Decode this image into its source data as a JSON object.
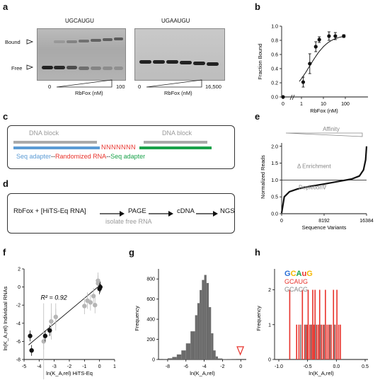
{
  "panels": {
    "a": "a",
    "b": "b",
    "c": "c",
    "d": "d",
    "e": "e",
    "f": "f",
    "g": "g",
    "h": "h"
  },
  "panel_a": {
    "seq1": "UGCAUGU",
    "seq2": "UGAAUGU",
    "bound_label": "Bound",
    "free_label": "Free",
    "x1_min": "0",
    "x1_max": "100",
    "x2_min": "0",
    "x2_max": "16,500",
    "xlabel1": "RbFox (nM)",
    "xlabel2": "RbFox (nM)"
  },
  "panel_c": {
    "dna_block_left": "DNA block",
    "dna_block_right": "DNA block",
    "randomized_seq": "NNNNNNN",
    "adapter_left": "Seq adapter",
    "dash1": "--",
    "middle": "Randomized RNA",
    "dash2": "--",
    "adapter_right": "Seq adapter"
  },
  "panel_d": {
    "step1": "RbFox + [HiTS-Eq RNA]",
    "step2": "PAGE",
    "step3": "cDNA",
    "step4": "NGS",
    "note": "isolate free RNA"
  },
  "chart_data": [
    {
      "panel": "b",
      "type": "scatter",
      "xlabel": "RbFox (nM)",
      "ylabel": "Fraction Bound",
      "xticks": [
        "0",
        "1",
        "10",
        "100"
      ],
      "yticks": [
        "0.0",
        "0.2",
        "0.4",
        "0.6",
        "0.8",
        "1.0"
      ],
      "xscale": "log",
      "ylim": [
        0,
        1.0
      ],
      "points": [
        {
          "x": 0,
          "y": 0.0,
          "err": 0.0
        },
        {
          "x": 1.2,
          "y": 0.21,
          "err": 0.07
        },
        {
          "x": 2.4,
          "y": 0.47,
          "err": 0.14
        },
        {
          "x": 4.5,
          "y": 0.71,
          "err": 0.07
        },
        {
          "x": 6.5,
          "y": 0.81,
          "err": 0.04
        },
        {
          "x": 18,
          "y": 0.86,
          "err": 0.06
        },
        {
          "x": 35,
          "y": 0.86,
          "err": 0.05
        },
        {
          "x": 85,
          "y": 0.86,
          "err": 0.02
        }
      ],
      "fit": "binding curve"
    },
    {
      "panel": "e",
      "type": "line",
      "title": "Affinity",
      "xlabel": "Sequence Variants",
      "ylabel": "Normalized Reads",
      "xticks": [
        "0",
        "8192",
        "16384"
      ],
      "yticks": [
        "0.0",
        "0.5",
        "1.0",
        "1.5",
        "2.0"
      ],
      "ylim": [
        0,
        2.1
      ],
      "reference_line": 1.0,
      "annotations": [
        "Enrichment",
        "Depletion"
      ],
      "x": [
        0,
        500,
        1500,
        3000,
        5000,
        8192,
        11000,
        13500,
        15000,
        15800,
        16200,
        16384
      ],
      "y": [
        0.02,
        0.5,
        0.65,
        0.73,
        0.8,
        0.88,
        0.96,
        1.03,
        1.12,
        1.3,
        1.6,
        2.0
      ]
    },
    {
      "panel": "f",
      "type": "scatter",
      "xlabel": "ln(K_A,rel) HiTS-Eq",
      "ylabel": "ln(K_A,rel) Individual RNAs",
      "annotation": "R² = 0.92",
      "xticks": [
        "-5",
        "-4",
        "-3",
        "-2",
        "-1",
        "0",
        "1"
      ],
      "yticks": [
        "-8",
        "-6",
        "-4",
        "-2",
        "0",
        "2"
      ],
      "xlim": [
        -5,
        1
      ],
      "ylim": [
        -8,
        2
      ],
      "series": [
        {
          "name": "black",
          "points": [
            [
              -4.6,
              -5.4
            ],
            [
              -4.5,
              -7.0
            ],
            [
              -3.6,
              -5.4
            ],
            [
              -3.3,
              -4.8
            ],
            [
              0.05,
              0.0
            ],
            [
              0.0,
              -0.2
            ]
          ]
        },
        {
          "name": "gray",
          "points": [
            [
              -3.7,
              -6.0
            ],
            [
              -3.2,
              -3.8
            ],
            [
              -2.9,
              -3.3
            ],
            [
              -1.0,
              -2.1
            ],
            [
              -0.8,
              -1.5
            ],
            [
              -0.6,
              -1.7
            ],
            [
              -0.4,
              -1.0
            ],
            [
              -0.3,
              -2.0
            ],
            [
              -0.1,
              0.7
            ],
            [
              -0.1,
              0.4
            ]
          ]
        }
      ]
    },
    {
      "panel": "g",
      "type": "bar",
      "xlabel": "ln(K_A,rel)",
      "ylabel": "Frequency",
      "xticks": [
        "-8",
        "-6",
        "-4",
        "-2",
        "0"
      ],
      "yticks": [
        "0",
        "200",
        "400",
        "600",
        "800"
      ],
      "xlim": [
        -9,
        0.6
      ],
      "ylim": [
        0,
        900
      ],
      "bins": [
        -8.5,
        -8,
        -7.5,
        -7,
        -6.5,
        -6,
        -5.5,
        -5,
        -4.75,
        -4.5,
        -4.25,
        -4,
        -3.75,
        -3.5,
        -3.25,
        -3,
        -2.75,
        -2.5,
        -2,
        -1.5,
        -1
      ],
      "values": [
        5,
        12,
        25,
        50,
        90,
        160,
        280,
        440,
        560,
        690,
        790,
        840,
        760,
        520,
        260,
        90,
        30,
        10,
        4,
        2,
        1
      ]
    },
    {
      "panel": "h",
      "type": "bar",
      "xlabel": "ln(K_A,rel)",
      "ylabel": "Frequency",
      "xticks": [
        "-1.0",
        "-0.5",
        "0.0",
        "0.5"
      ],
      "yticks": [
        "0",
        "1",
        "2"
      ],
      "xlim": [
        -1.0,
        0.5
      ],
      "ylim": [
        0,
        2.6
      ],
      "series": [
        {
          "name": "GCAUG",
          "color": "#e8312a",
          "x": [
            -0.82,
            -0.7,
            -0.66,
            -0.6,
            -0.56,
            -0.52,
            -0.5,
            -0.47,
            -0.44,
            -0.42,
            -0.4,
            -0.38,
            -0.35,
            -0.32,
            -0.3,
            -0.27,
            -0.24,
            -0.2,
            -0.17,
            -0.14,
            -0.1,
            -0.06,
            -0.03,
            0.0,
            0.03,
            0.06
          ],
          "values": [
            2,
            1,
            1,
            2,
            1,
            1,
            2,
            1,
            1,
            2,
            1,
            2,
            1,
            1,
            2,
            1,
            1,
            2,
            1,
            1,
            1,
            2,
            1,
            2,
            1,
            1
          ]
        },
        {
          "name": "GCACG",
          "color": "#808080",
          "x": [
            -0.63,
            -0.54,
            -0.45,
            -0.37,
            -0.29,
            -0.22,
            -0.12,
            -0.04
          ],
          "values": [
            1,
            1,
            1,
            1,
            1,
            1,
            1,
            1
          ]
        }
      ]
    }
  ],
  "panel_h_legend": {
    "motif_logo": "GCAuG",
    "red": "GCAUG",
    "gray": "GCACG"
  },
  "colors": {
    "red": "#e8312a",
    "gray": "#8c8c8c",
    "blue": "#5b9bd5",
    "green": "#1aa24a"
  }
}
